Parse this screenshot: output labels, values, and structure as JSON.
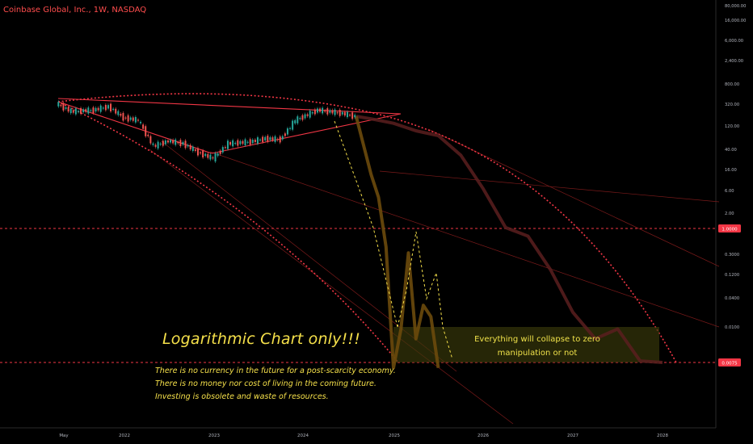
{
  "header": {
    "symbol_title": "Coinbase Global, Inc., 1W, NASDAQ"
  },
  "annotations": {
    "title": "Logarithmic Chart only!!!",
    "lines": [
      "There is no currency in the future for a post-scarcity economy.",
      "There is no money nor cost of living in the coming future.",
      "Investing is obsolete and waste of resources."
    ],
    "box_text": [
      "Everything will collapse to zero",
      "manipulation or not"
    ]
  },
  "colors": {
    "background": "#000000",
    "up_candle": "#26a69a",
    "down_candle": "#ef5350",
    "trendline": "#f23645",
    "projection": "#f5e04a",
    "label_bg": "#f23645"
  },
  "chart_data": {
    "type": "line",
    "title": "",
    "scale": "log",
    "x_ticks": [
      "May",
      "2022",
      "2023",
      "2024",
      "2025",
      "2026",
      "2027",
      "2028"
    ],
    "y_ticks": [
      "80,000.00",
      "16,000.00",
      "6,000.00",
      "2,400.00",
      "800.00",
      "320.00",
      "120.00",
      "40.00",
      "16.00",
      "6.00",
      "2.00",
      "0.3000",
      "0.1200",
      "0.0400",
      "0.0100"
    ],
    "price_labels": [
      "1.0000",
      "0.0075"
    ],
    "series": [
      {
        "kind": "actual",
        "points": [
          [
            "2021-04",
            342
          ],
          [
            "2021-06",
            245
          ],
          [
            "2021-09",
            260
          ],
          [
            "2021-11",
            300
          ],
          [
            "2022-01",
            190
          ],
          [
            "2022-03",
            170
          ],
          [
            "2022-05",
            58
          ],
          [
            "2022-07",
            72
          ],
          [
            "2022-09",
            65
          ],
          [
            "2022-11",
            45
          ],
          [
            "2023-01",
            35
          ],
          [
            "2023-03",
            65
          ],
          [
            "2023-06",
            70
          ],
          [
            "2023-08",
            80
          ],
          [
            "2023-10",
            77
          ],
          [
            "2023-12",
            170
          ],
          [
            "2024-03",
            260
          ],
          [
            "2024-06",
            230
          ],
          [
            "2024-08",
            200
          ]
        ]
      },
      {
        "kind": "projection",
        "points": [
          [
            "2024-08",
            200
          ],
          [
            "2024-10",
            18
          ],
          [
            "2024-11",
            7
          ],
          [
            "2024-12",
            0.9
          ],
          [
            "2025-01",
            0.006
          ],
          [
            "2025-02",
            0.03
          ],
          [
            "2025-03",
            0.7
          ],
          [
            "2025-04",
            0.02
          ],
          [
            "2025-05",
            0.08
          ],
          [
            "2025-06",
            0.05
          ],
          [
            "2025-07",
            0.006
          ]
        ]
      },
      {
        "kind": "faded",
        "points": [
          [
            "2024-08",
            200
          ],
          [
            "2024-10",
            180
          ],
          [
            "2025-01",
            150
          ],
          [
            "2025-04",
            110
          ],
          [
            "2025-07",
            90
          ],
          [
            "2025-10",
            40
          ],
          [
            "2026-01",
            10
          ],
          [
            "2026-04",
            2
          ],
          [
            "2026-07",
            1.4
          ],
          [
            "2026-10",
            0.35
          ],
          [
            "2027-01",
            0.06
          ],
          [
            "2027-04",
            0.02
          ],
          [
            "2027-07",
            0.03
          ],
          [
            "2027-10",
            0.008
          ],
          [
            "2028-01",
            0.0075
          ]
        ]
      }
    ]
  }
}
